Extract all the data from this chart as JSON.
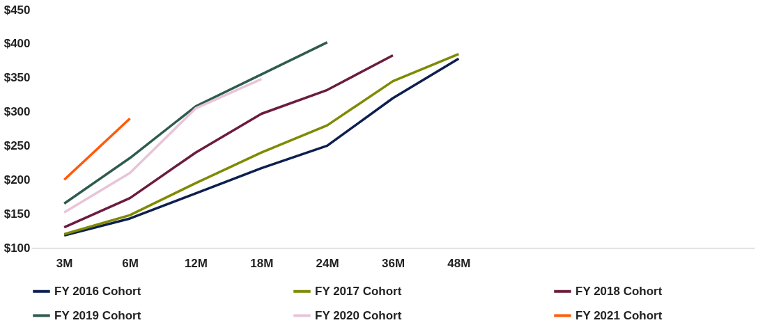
{
  "chart_data": {
    "type": "line",
    "categories": [
      "3M",
      "6M",
      "12M",
      "18M",
      "24M",
      "36M",
      "48M",
      null,
      null,
      null,
      null
    ],
    "series": [
      {
        "name": "FY 2016 Cohort",
        "color": "#0d1f4f",
        "values": [
          118,
          143,
          180,
          217,
          250,
          320,
          378,
          null,
          null,
          null,
          null
        ]
      },
      {
        "name": "FY 2017 Cohort",
        "color": "#7f8a00",
        "values": [
          120,
          148,
          195,
          240,
          280,
          345,
          385,
          null,
          null,
          null,
          null
        ]
      },
      {
        "name": "FY 2018 Cohort",
        "color": "#6b1c3e",
        "values": [
          130,
          173,
          240,
          297,
          332,
          383,
          null,
          null,
          null,
          null,
          null
        ]
      },
      {
        "name": "FY 2019 Cohort",
        "color": "#2e5b4f",
        "values": [
          165,
          232,
          308,
          355,
          402,
          null,
          null,
          null,
          null,
          null,
          null
        ]
      },
      {
        "name": "FY 2020 Cohort",
        "color": "#e8c4d8",
        "values": [
          152,
          210,
          305,
          348,
          null,
          null,
          null,
          null,
          null,
          null,
          null
        ]
      },
      {
        "name": "FY 2021 Cohort",
        "color": "#ff5a0d",
        "values": [
          200,
          290,
          null,
          null,
          null,
          null,
          null,
          null,
          null,
          null,
          null
        ]
      }
    ],
    "ylim": [
      100,
      450
    ],
    "yticks": [
      {
        "value": 100,
        "label": "$100"
      },
      {
        "value": 150,
        "label": "$150"
      },
      {
        "value": 200,
        "label": "$200"
      },
      {
        "value": 250,
        "label": "$250"
      },
      {
        "value": 300,
        "label": "$300"
      },
      {
        "value": 350,
        "label": "$350"
      },
      {
        "value": 400,
        "label": "$400"
      },
      {
        "value": 450,
        "label": "$450"
      }
    ],
    "grid": false,
    "legend": "bottom",
    "marker": "none",
    "line_style": "solid"
  }
}
